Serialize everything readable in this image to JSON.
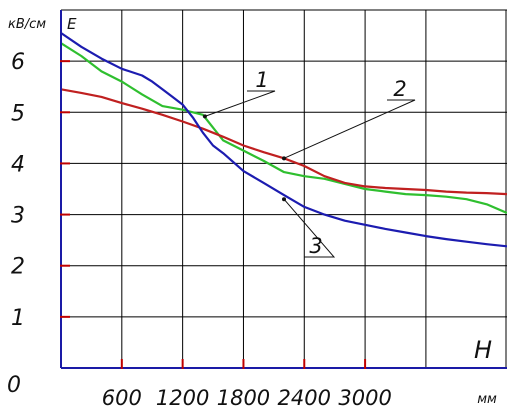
{
  "chart_data": {
    "type": "line",
    "ylabel": "кВ/см",
    "ylabel_symbol": "E",
    "xlabel": "мм",
    "xlabel_symbol": "H",
    "origin_label": "0",
    "xlim": [
      0,
      4400
    ],
    "ylim": [
      0,
      7
    ],
    "x_ticks": [
      600,
      1200,
      1800,
      2400,
      3000
    ],
    "x_tick_labels": [
      "600",
      "1200",
      "1800",
      "2400",
      "3000"
    ],
    "y_ticks": [
      1,
      2,
      3,
      4,
      5,
      6
    ],
    "y_tick_labels": [
      "1",
      "2",
      "3",
      "4",
      "5",
      "6"
    ],
    "grid": true,
    "series": [
      {
        "name": "1",
        "color": "#2fbf2f",
        "x": [
          0,
          200,
          400,
          600,
          800,
          1000,
          1200,
          1300,
          1400,
          1500,
          1600,
          1800,
          2000,
          2200,
          2400,
          2600,
          2800,
          3000,
          3200,
          3400,
          3600,
          3800,
          4000,
          4200,
          4400
        ],
        "y": [
          6.35,
          6.1,
          5.8,
          5.6,
          5.35,
          5.12,
          5.05,
          5.0,
          4.95,
          4.7,
          4.45,
          4.25,
          4.05,
          3.83,
          3.75,
          3.7,
          3.6,
          3.5,
          3.45,
          3.4,
          3.38,
          3.35,
          3.3,
          3.2,
          3.03
        ]
      },
      {
        "name": "2",
        "color": "#c02020",
        "x": [
          0,
          200,
          400,
          600,
          800,
          1000,
          1200,
          1400,
          1600,
          1800,
          2000,
          2200,
          2400,
          2600,
          2800,
          3000,
          3200,
          3400,
          3600,
          3800,
          4000,
          4200,
          4400
        ],
        "y": [
          5.45,
          5.38,
          5.3,
          5.18,
          5.07,
          4.95,
          4.82,
          4.68,
          4.52,
          4.35,
          4.22,
          4.1,
          3.95,
          3.75,
          3.62,
          3.55,
          3.52,
          3.5,
          3.48,
          3.45,
          3.43,
          3.42,
          3.4
        ]
      },
      {
        "name": "3",
        "color": "#1c1cb0",
        "x": [
          0,
          200,
          400,
          600,
          800,
          900,
          1000,
          1100,
          1200,
          1300,
          1400,
          1500,
          1600,
          1800,
          2000,
          2200,
          2400,
          2600,
          2800,
          3000,
          3200,
          3400,
          3600,
          3800,
          4000,
          4200,
          4400
        ],
        "y": [
          6.55,
          6.28,
          6.05,
          5.85,
          5.72,
          5.6,
          5.45,
          5.3,
          5.15,
          4.9,
          4.6,
          4.35,
          4.2,
          3.85,
          3.62,
          3.38,
          3.15,
          3.0,
          2.88,
          2.8,
          2.72,
          2.65,
          2.58,
          2.52,
          2.47,
          2.42,
          2.38
        ]
      }
    ]
  }
}
